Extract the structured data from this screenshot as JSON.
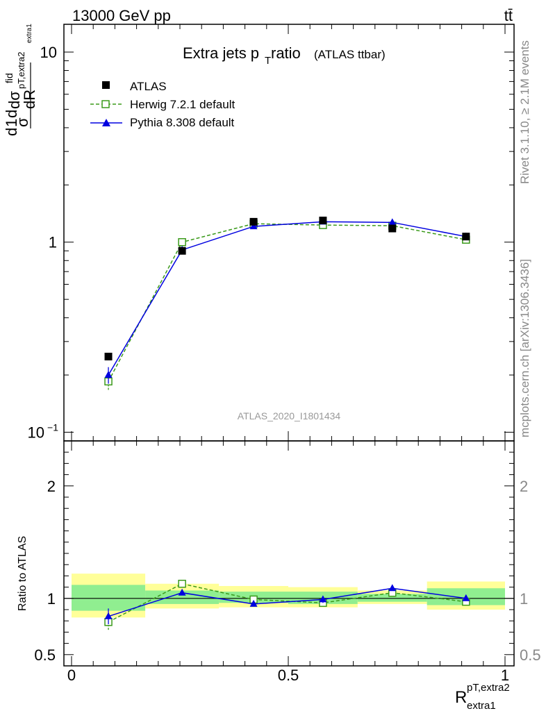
{
  "header": {
    "energy": "13000 GeV pp",
    "process": "tt̄",
    "title_main": "Extra jets p",
    "title_sub": "T",
    "title_tail": " ratio",
    "title_paren": "(ATLAS ttbar)",
    "analysis_id": "ATLAS_2020_I1801434",
    "side_rivet": "Rivet 3.1.10, ≥ 2.1M events",
    "side_mcplots": "mcplots.cern.ch [arXiv:1306.3436]"
  },
  "axes": {
    "ylabel_main": "dR",
    "ylabel_top": "dσ",
    "ylabel_fid": "fid",
    "ylabel_sub": "pT,extra2",
    "ylabel_sub2": "extra1",
    "ylabel_d": "d",
    "ylabel_frac": "1",
    "ylabel_sigma": "σ",
    "ratio_ylabel": "Ratio to ATLAS",
    "xlabel_main": "R",
    "xlabel_sup": "pT,extra2",
    "xlabel_sub": "extra1"
  },
  "colors": {
    "atlas": "#000000",
    "herwig": "#3a9a1a",
    "pythia": "#0000e0",
    "band_inner": "#90ee90",
    "band_outer": "#ffff99"
  },
  "chart_data": {
    "type": "scatter",
    "xlim": [
      0,
      1
    ],
    "ylim": [
      0.09,
      14
    ],
    "ylog": true,
    "ratio_ylim": [
      0.4,
      2.4
    ],
    "x_edges": [
      0,
      0.17,
      0.34,
      0.5,
      0.66,
      0.82,
      1.0
    ],
    "x": [
      0.085,
      0.255,
      0.42,
      0.58,
      0.74,
      0.91
    ],
    "main_ticks": [
      {
        "value": 0.1,
        "label": "10",
        "exp": "−1"
      },
      {
        "value": 1,
        "label": "1",
        "exp": ""
      },
      {
        "value": 10,
        "label": "10",
        "exp": ""
      }
    ],
    "x_ticks": [
      {
        "value": 0,
        "label": "0"
      },
      {
        "value": 0.5,
        "label": "0.5"
      },
      {
        "value": 1,
        "label": "1"
      }
    ],
    "ratio_ticks": [
      {
        "value": 0.5,
        "label": "0.5"
      },
      {
        "value": 1,
        "label": "1"
      },
      {
        "value": 2,
        "label": "2"
      }
    ],
    "series": [
      {
        "name": "ATLAS",
        "style": "data",
        "values": [
          0.25,
          0.9,
          1.28,
          1.3,
          1.18,
          1.07
        ]
      },
      {
        "name": "Herwig 7.2.1 default",
        "style": "herwig",
        "values": [
          0.185,
          1.0,
          1.25,
          1.23,
          1.22,
          1.03
        ],
        "errors": [
          0.018,
          0.03,
          0.03,
          0.03,
          0.03,
          0.03
        ]
      },
      {
        "name": "Pythia 8.308 default",
        "style": "pythia",
        "values": [
          0.2,
          0.91,
          1.21,
          1.28,
          1.27,
          1.07
        ],
        "errors": [
          0.02,
          0.03,
          0.03,
          0.03,
          0.04,
          0.03
        ]
      }
    ],
    "ratio_series": [
      {
        "name": "Herwig 7.2.1 default",
        "values": [
          0.79,
          1.13,
          0.99,
          0.96,
          1.05,
          0.97
        ],
        "errors": [
          0.07,
          0.02,
          0.02,
          0.02,
          0.02,
          0.02
        ]
      },
      {
        "name": "Pythia 8.308 default",
        "values": [
          0.84,
          1.05,
          0.95,
          0.99,
          1.09,
          1.0
        ],
        "errors": [
          0.07,
          0.02,
          0.02,
          0.03,
          0.02,
          0.02
        ]
      }
    ],
    "band_inner": [
      [
        0.89,
        1.12
      ],
      [
        0.95,
        1.07
      ],
      [
        0.96,
        1.06
      ],
      [
        0.95,
        1.06
      ],
      [
        0.97,
        1.04
      ],
      [
        0.94,
        1.09
      ]
    ],
    "band_outer": [
      [
        0.83,
        1.22
      ],
      [
        0.91,
        1.13
      ],
      [
        0.92,
        1.11
      ],
      [
        0.92,
        1.1
      ],
      [
        0.95,
        1.07
      ],
      [
        0.9,
        1.15
      ]
    ]
  }
}
